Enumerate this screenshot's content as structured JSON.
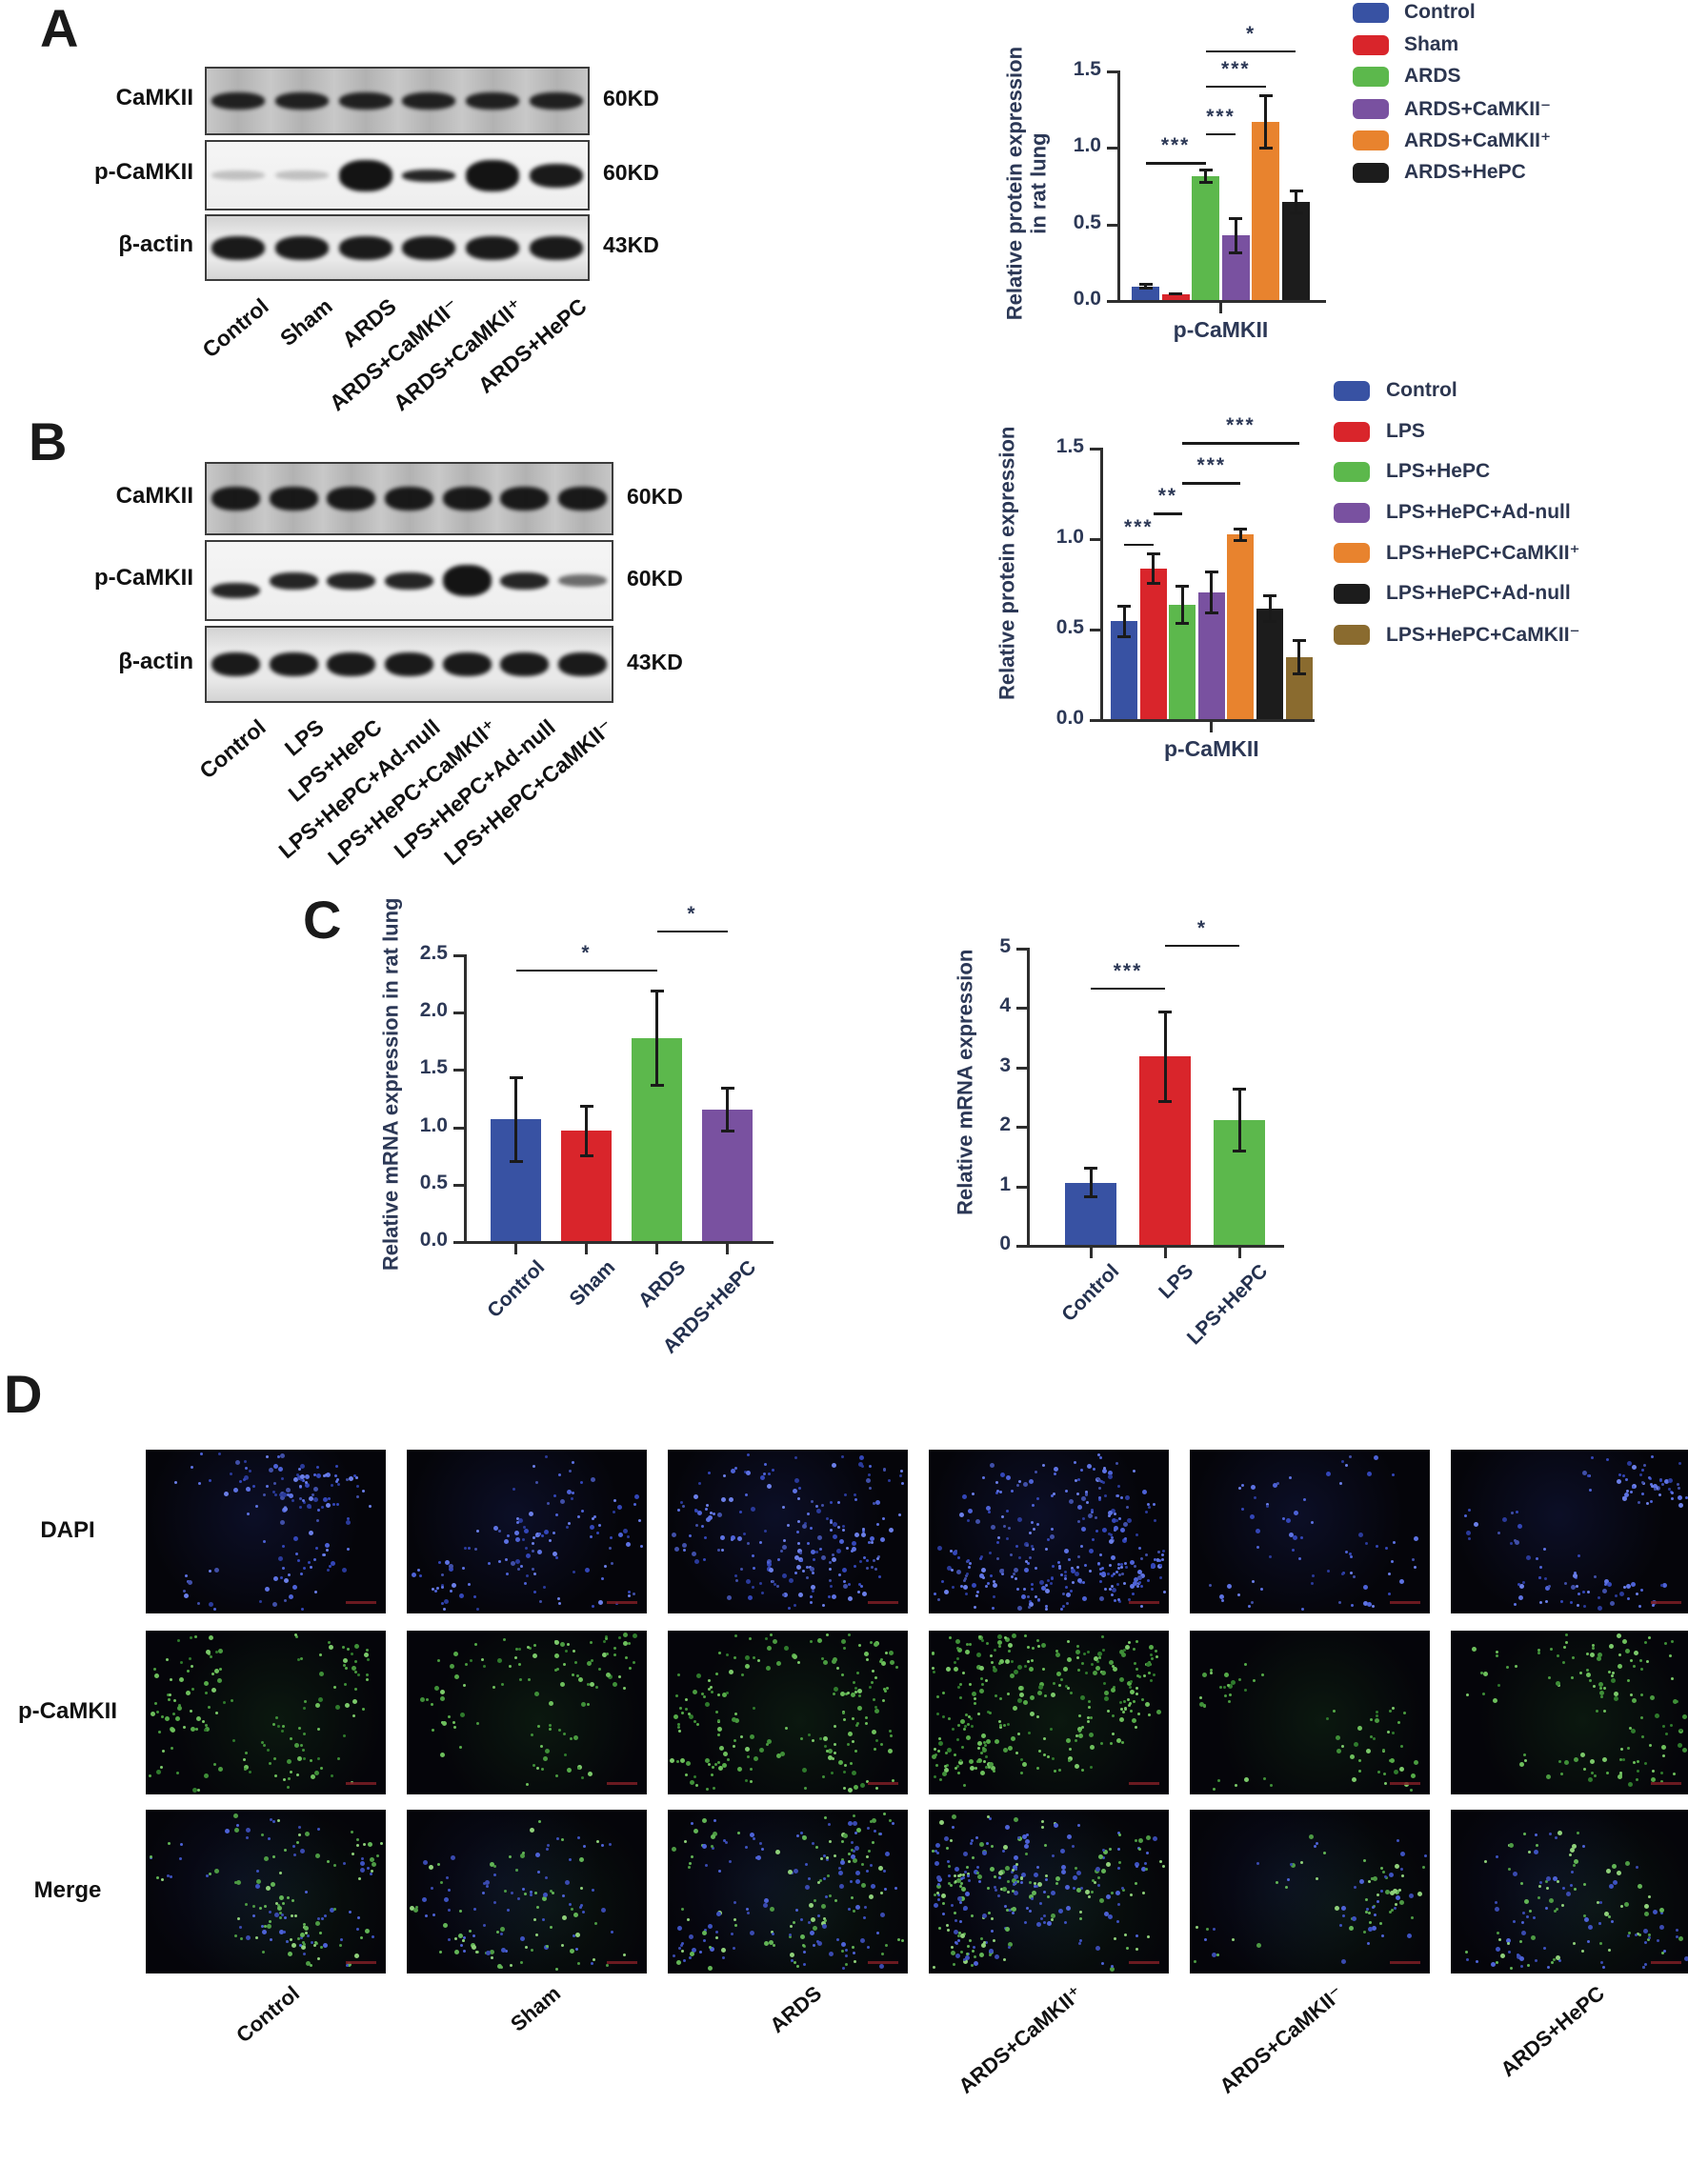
{
  "panels": {
    "A": {
      "label": "A",
      "blot": {
        "row_labels": [
          "CaMKII",
          "p-CaMKII",
          "β-actin"
        ],
        "row_sizes": [
          "60KD",
          "60KD",
          "43KD"
        ],
        "lane_labels": [
          "Control",
          "Sham",
          "ARDS",
          "ARDS+CaMKII⁻",
          "ARDS+CaMKII⁺",
          "ARDS+HePC"
        ],
        "band_pattern": [
          [
            "medium",
            "medium",
            "medium",
            "medium",
            "medium",
            "medium"
          ],
          [
            "faint",
            "faint",
            "vstrong",
            "thin",
            "vstrong",
            "strong"
          ],
          [
            "strong",
            "strong",
            "strong",
            "strong",
            "strong",
            "strong"
          ]
        ]
      }
    },
    "B": {
      "label": "B",
      "blot": {
        "row_labels": [
          "CaMKII",
          "p-CaMKII",
          "β-actin"
        ],
        "row_sizes": [
          "60KD",
          "60KD",
          "43KD"
        ],
        "lane_labels": [
          "Control",
          "LPS",
          "LPS+HePC",
          "LPS+HePC+Ad-null",
          "LPS+HePC+CaMKII⁺",
          "LPS+HePC+Ad-null",
          "LPS+HePC+CaMKII⁻"
        ],
        "band_pattern": [
          [
            "strong",
            "strong",
            "strong",
            "strong",
            "strong",
            "strong",
            "strong"
          ],
          [
            "medium_low",
            "medium",
            "medium",
            "medium",
            "vstrong",
            "medium",
            "light"
          ],
          [
            "strong",
            "strong",
            "strong",
            "strong",
            "strong",
            "strong",
            "strong"
          ]
        ]
      }
    },
    "C": {
      "label": "C"
    },
    "D": {
      "label": "D",
      "row_labels": [
        "DAPI",
        "p-CaMKII",
        "Merge"
      ],
      "column_labels": [
        "Control",
        "Sham",
        "ARDS",
        "ARDS+CaMKII⁺",
        "ARDS+CaMKII⁻",
        "ARDS+HePC"
      ],
      "channels": [
        "blue",
        "green",
        "merge"
      ],
      "scale_bar_color": "#7d1d24"
    }
  },
  "chart_data": [
    {
      "id": "panel_a_protein",
      "panel": "A",
      "type": "bar",
      "title": "",
      "xlabel": "p-CaMKII",
      "ylabel": "Relative protein expression\nin rat lung",
      "ylim": [
        0,
        1.5
      ],
      "yticks": [
        0,
        0.5,
        1.0,
        1.5
      ],
      "ytick_labels": [
        "0.0",
        "0.5",
        "1.0",
        "1.5"
      ],
      "categories": [
        "Control",
        "Sham",
        "ARDS",
        "ARDS+CaMKII⁻",
        "ARDS+CaMKII⁺",
        "ARDS+HePC"
      ],
      "values": [
        0.09,
        0.04,
        0.81,
        0.42,
        1.16,
        0.64
      ],
      "errors": [
        0.02,
        0.01,
        0.05,
        0.12,
        0.18,
        0.08
      ],
      "colors": [
        "#3852a3",
        "#d9252b",
        "#5cb84c",
        "#7951a0",
        "#e8832e",
        "#1c1c1c"
      ],
      "legend": [
        "Control",
        "Sham",
        "ARDS",
        "ARDS+CaMKII⁻",
        "ARDS+CaMKII⁺",
        "ARDS+HePC"
      ],
      "legend_position": "right",
      "grid": false,
      "significance": [
        {
          "from": 0,
          "to": 2,
          "label": "***",
          "height": 0.9
        },
        {
          "from": 2,
          "to": 3,
          "label": "***",
          "height": 1.09
        },
        {
          "from": 2,
          "to": 4,
          "label": "***",
          "height": 1.4
        },
        {
          "from": 2,
          "to": 5,
          "label": "*",
          "height": 1.63
        }
      ]
    },
    {
      "id": "panel_b_protein",
      "panel": "B",
      "type": "bar",
      "title": "",
      "xlabel": "p-CaMKII",
      "ylabel": "Relative protein expression",
      "ylim": [
        0,
        1.5
      ],
      "yticks": [
        0,
        0.5,
        1.0,
        1.5
      ],
      "ytick_labels": [
        "0.0",
        "0.5",
        "1.0",
        "1.5"
      ],
      "categories": [
        "Control",
        "LPS",
        "LPS+HePC",
        "LPS+HePC+Ad-null",
        "LPS+HePC+CaMKII⁺",
        "LPS+HePC+Ad-null",
        "LPS+HePC+CaMKII⁻"
      ],
      "values": [
        0.54,
        0.83,
        0.63,
        0.7,
        1.02,
        0.61,
        0.34
      ],
      "errors": [
        0.09,
        0.09,
        0.11,
        0.12,
        0.04,
        0.08,
        0.1
      ],
      "colors": [
        "#3852a3",
        "#d9252b",
        "#5cb84c",
        "#7951a0",
        "#e8832e",
        "#1c1c1c",
        "#8a6b2f"
      ],
      "legend": [
        "Control",
        "LPS",
        "LPS+HePC",
        "LPS+HePC+Ad-null",
        "LPS+HePC+CaMKII⁺",
        "LPS+HePC+Ad-null",
        "LPS+HePC+CaMKII⁻"
      ],
      "legend_position": "right",
      "grid": false,
      "significance": [
        {
          "from": 0,
          "to": 1,
          "label": "***",
          "height": 0.97
        },
        {
          "from": 1,
          "to": 2,
          "label": "**",
          "height": 1.14
        },
        {
          "from": 2,
          "to": 4,
          "label": "***",
          "height": 1.31
        },
        {
          "from": 2,
          "to": 6,
          "label": "***",
          "height": 1.53
        }
      ]
    },
    {
      "id": "panel_c_rat_lung_mrna",
      "panel": "C",
      "type": "bar",
      "title": "",
      "xlabel": "",
      "ylabel": "Relative mRNA expression in rat lung",
      "ylim": [
        0,
        2.5
      ],
      "yticks": [
        0,
        0.5,
        1.0,
        1.5,
        2.0,
        2.5
      ],
      "ytick_labels": [
        "0.0",
        "0.5",
        "1.0",
        "1.5",
        "2.0",
        "2.5"
      ],
      "categories": [
        "Control",
        "Sham",
        "ARDS",
        "ARDS+HePC"
      ],
      "values": [
        1.06,
        0.96,
        1.77,
        1.15
      ],
      "errors": [
        0.38,
        0.23,
        0.42,
        0.2
      ],
      "colors": [
        "#3852a3",
        "#d9252b",
        "#5cb84c",
        "#7951a0"
      ],
      "legend": [],
      "grid": false,
      "significance": [
        {
          "from": 0,
          "to": 2,
          "label": "*",
          "height": 2.37
        },
        {
          "from": 2,
          "to": 3,
          "label": "*",
          "height": 2.71
        }
      ]
    },
    {
      "id": "panel_c_cell_mrna",
      "panel": "C",
      "type": "bar",
      "title": "",
      "xlabel": "",
      "ylabel": "Relative mRNA expression",
      "ylim": [
        0,
        5
      ],
      "yticks": [
        0,
        1,
        2,
        3,
        4,
        5
      ],
      "ytick_labels": [
        "0",
        "1",
        "2",
        "3",
        "4",
        "5"
      ],
      "categories": [
        "Control",
        "LPS",
        "LPS+HePC"
      ],
      "values": [
        1.05,
        3.17,
        2.1
      ],
      "errors": [
        0.27,
        0.78,
        0.55
      ],
      "colors": [
        "#3852a3",
        "#d9252b",
        "#5cb84c"
      ],
      "legend": [],
      "grid": false,
      "significance": [
        {
          "from": 0,
          "to": 1,
          "label": "***",
          "height": 4.33
        },
        {
          "from": 1,
          "to": 2,
          "label": "*",
          "height": 5.05
        }
      ]
    }
  ],
  "accent_colors": {
    "bar_blue": "#3852a3",
    "bar_red": "#d9252b",
    "bar_green": "#5cb84c",
    "bar_purple": "#7951a0",
    "bar_orange": "#e8832e",
    "bar_black": "#1c1c1c",
    "bar_brown": "#8a6b2f",
    "chart_text": "#2c3856",
    "dapi_blue": "#4d62d6",
    "stain_green": "#55aa48"
  }
}
